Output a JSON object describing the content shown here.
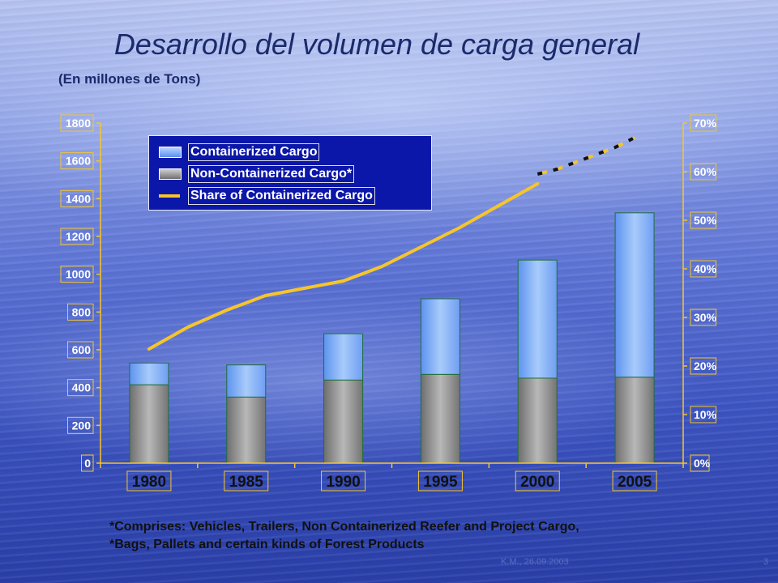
{
  "title": "Desarrollo del volumen de carga general",
  "subtitle": "(En millones de Tons)",
  "footnote_line1": "*Comprises: Vehicles, Trailers, Non Containerized Reefer and Project Cargo,",
  "footnote_line2": "*Bags, Pallets and certain kinds of Forest Products",
  "footer_left": "K.M., 26.09.2003",
  "footer_page": "3",
  "colors": {
    "containerized": "#86b2f5",
    "non_containerized": "#8f8f8f",
    "share_line": "#f7c52a",
    "legend_bg": "#0b17a8"
  },
  "chart_data": {
    "type": "bar",
    "stacked": true,
    "categories": [
      "1980",
      "1985",
      "1990",
      "1995",
      "2000",
      "2005"
    ],
    "series": [
      {
        "name": "Non-Containerized Cargo*",
        "type": "bar",
        "values": [
          415,
          350,
          440,
          470,
          450,
          455
        ]
      },
      {
        "name": "Containerized Cargo",
        "type": "bar",
        "values": [
          115,
          170,
          245,
          400,
          625,
          870
        ]
      },
      {
        "name": "Share of Containerized Cargo",
        "type": "line",
        "axis": "right",
        "unit": "%",
        "x": [
          1980,
          1982,
          1984,
          1986,
          1988,
          1990,
          1992,
          1994,
          1996,
          1998,
          2000
        ],
        "values": [
          23.5,
          28,
          31.5,
          34.5,
          36,
          37.5,
          40.5,
          44.5,
          48.5,
          53,
          57.5
        ],
        "projected_x": [
          2000,
          2001,
          2002,
          2003,
          2004,
          2005
        ],
        "projected_values": [
          59.5,
          60.5,
          62,
          63.5,
          65,
          67
        ]
      }
    ],
    "left_axis": {
      "ylim": [
        0,
        1800
      ],
      "ticks": [
        "0",
        "200",
        "400",
        "600",
        "800",
        "1000",
        "1200",
        "1400",
        "1600",
        "1800"
      ]
    },
    "right_axis": {
      "ylim": [
        0,
        70
      ],
      "ticks": [
        "0%",
        "10%",
        "20%",
        "30%",
        "40%",
        "50%",
        "60%",
        "70%"
      ]
    },
    "legend": [
      "Containerized Cargo",
      "Non-Containerized Cargo*",
      "Share of Containerized Cargo"
    ],
    "legend_position": "top-left",
    "grid": false
  }
}
